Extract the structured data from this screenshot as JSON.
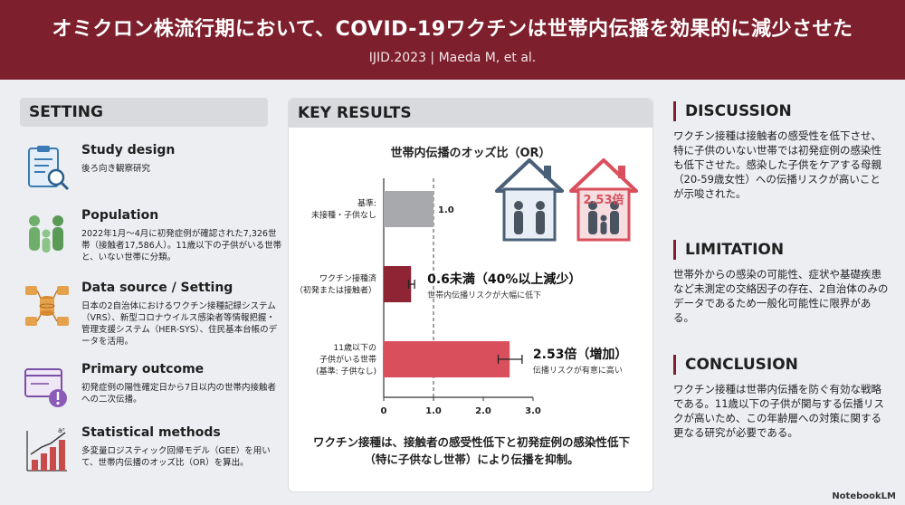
{
  "header": {
    "title": "オミクロン株流行期において、COVID-19ワクチンは世帯内伝播を効果的に減少させた",
    "subtitle": "IJID.2023 | Maeda M, et al."
  },
  "setting": {
    "heading": "SETTING",
    "items": [
      {
        "title": "Study design",
        "text": "後ろ向き観察研究",
        "icon": "clipboard-search-icon"
      },
      {
        "title": "Population",
        "text": "2022年1月〜4月に初発症例が確認された7,326世帯（接触者17,586人）。11歳以下の子供がいる世帯と、いない世帯に分類。",
        "icon": "family-icon"
      },
      {
        "title": "Data source / Setting",
        "text": "日本の2自治体におけるワクチン接種記録システム（VRS）、新型コロナウイルス感染者等情報把握・管理支援システム（HER-SYS）、住民基本台帳のデータを活用。",
        "icon": "database-network-icon"
      },
      {
        "title": "Primary outcome",
        "text": "初発症例の陽性確定日から7日以内の世帯内接触者への二次伝播。",
        "icon": "window-alert-icon"
      },
      {
        "title": "Statistical methods",
        "text": "多変量ロジスティック回帰モデル（GEE）を用いて、世帯内伝播のオッズ比（OR）を算出。",
        "icon": "bar-chart-trend-icon"
      }
    ]
  },
  "key_results": {
    "heading": "KEY RESULTS",
    "conclusion": "ワクチン接種は、接触者の感受性低下と初発症例の感染性低下（特に子供なし世帯）により伝播を抑制。",
    "house_badge": "2.53倍",
    "colors": {
      "reference": "#a7a9ad",
      "vaccinated": "#8e2434",
      "children": "#d9505c",
      "accent": "#7d1f2c"
    }
  },
  "chart_data": {
    "type": "bar",
    "orientation": "horizontal",
    "title": "世帯内伝播のオッズ比（OR）",
    "categories": [
      "基準:\n未接種・子供なし",
      "ワクチン接種済\n（初発または接触者）",
      "11歳以下の\n子供がいる世帯\n(基準: 子供なし)"
    ],
    "values": [
      1.0,
      0.55,
      2.53
    ],
    "error_low": [
      null,
      0.5,
      2.3
    ],
    "error_high": [
      null,
      0.62,
      2.78
    ],
    "value_labels": [
      "1.0",
      "0.6未満（40%以上減少）",
      "2.53倍（増加）"
    ],
    "value_sublabels": [
      "",
      "世帯内伝播リスクが大幅に低下",
      "伝播リスクが有意に高い"
    ],
    "xlim": [
      0,
      3.0
    ],
    "xticks": [
      "0",
      "1.0",
      "2.0",
      "3.0"
    ],
    "reference_line": 1.0,
    "grid": false,
    "legend": "none"
  },
  "discussion": {
    "heading": "DISCUSSION",
    "text": "ワクチン接種は接触者の感受性を低下させ、特に子供のいない世帯では初発症例の感染性も低下させた。感染した子供をケアする母親（20-59歳女性）への伝播リスクが高いことが示唆された。"
  },
  "limitation": {
    "heading": "LIMITATION",
    "text": "世帯外からの感染の可能性、症状や基礎疾患など未測定の交絡因子の存在、2自治体のみのデータであるため一般化可能性に限界がある。"
  },
  "conclusion": {
    "heading": "CONCLUSION",
    "text": "ワクチン接種は世帯内伝播を防ぐ有効な戦略である。11歳以下の子供が関与する伝播リスクが高いため、この年齢層への対策に関する更なる研究が必要である。"
  },
  "footer": {
    "logo": "NotebookLM"
  }
}
